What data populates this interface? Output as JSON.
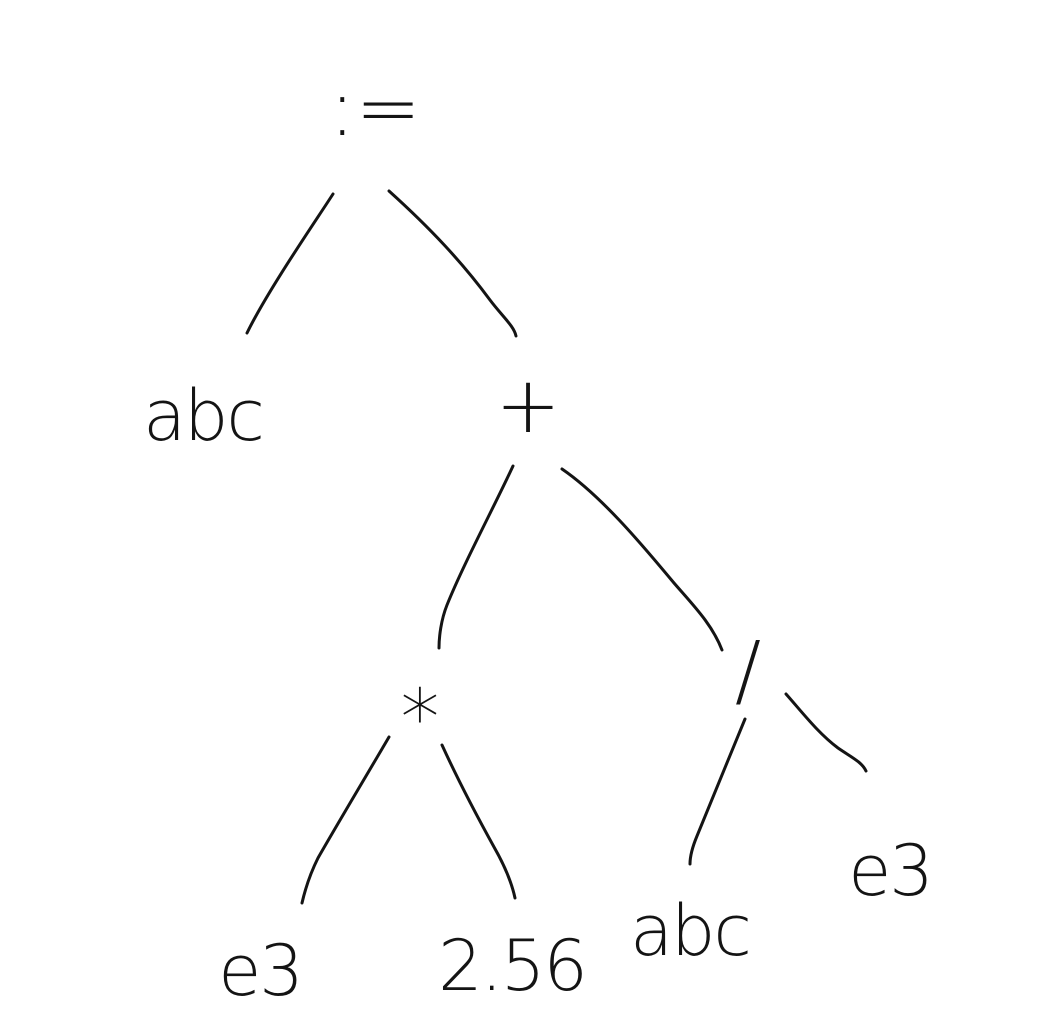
{
  "tree": {
    "root": {
      "label": ":=",
      "left": {
        "label": "abc"
      },
      "right": {
        "label": "+",
        "left": {
          "label": "*",
          "left": {
            "label": "e3"
          },
          "right": {
            "label": "2.56"
          }
        },
        "right": {
          "label": "/",
          "left": {
            "label": "abc"
          },
          "right": {
            "label": "e3"
          }
        }
      }
    }
  }
}
